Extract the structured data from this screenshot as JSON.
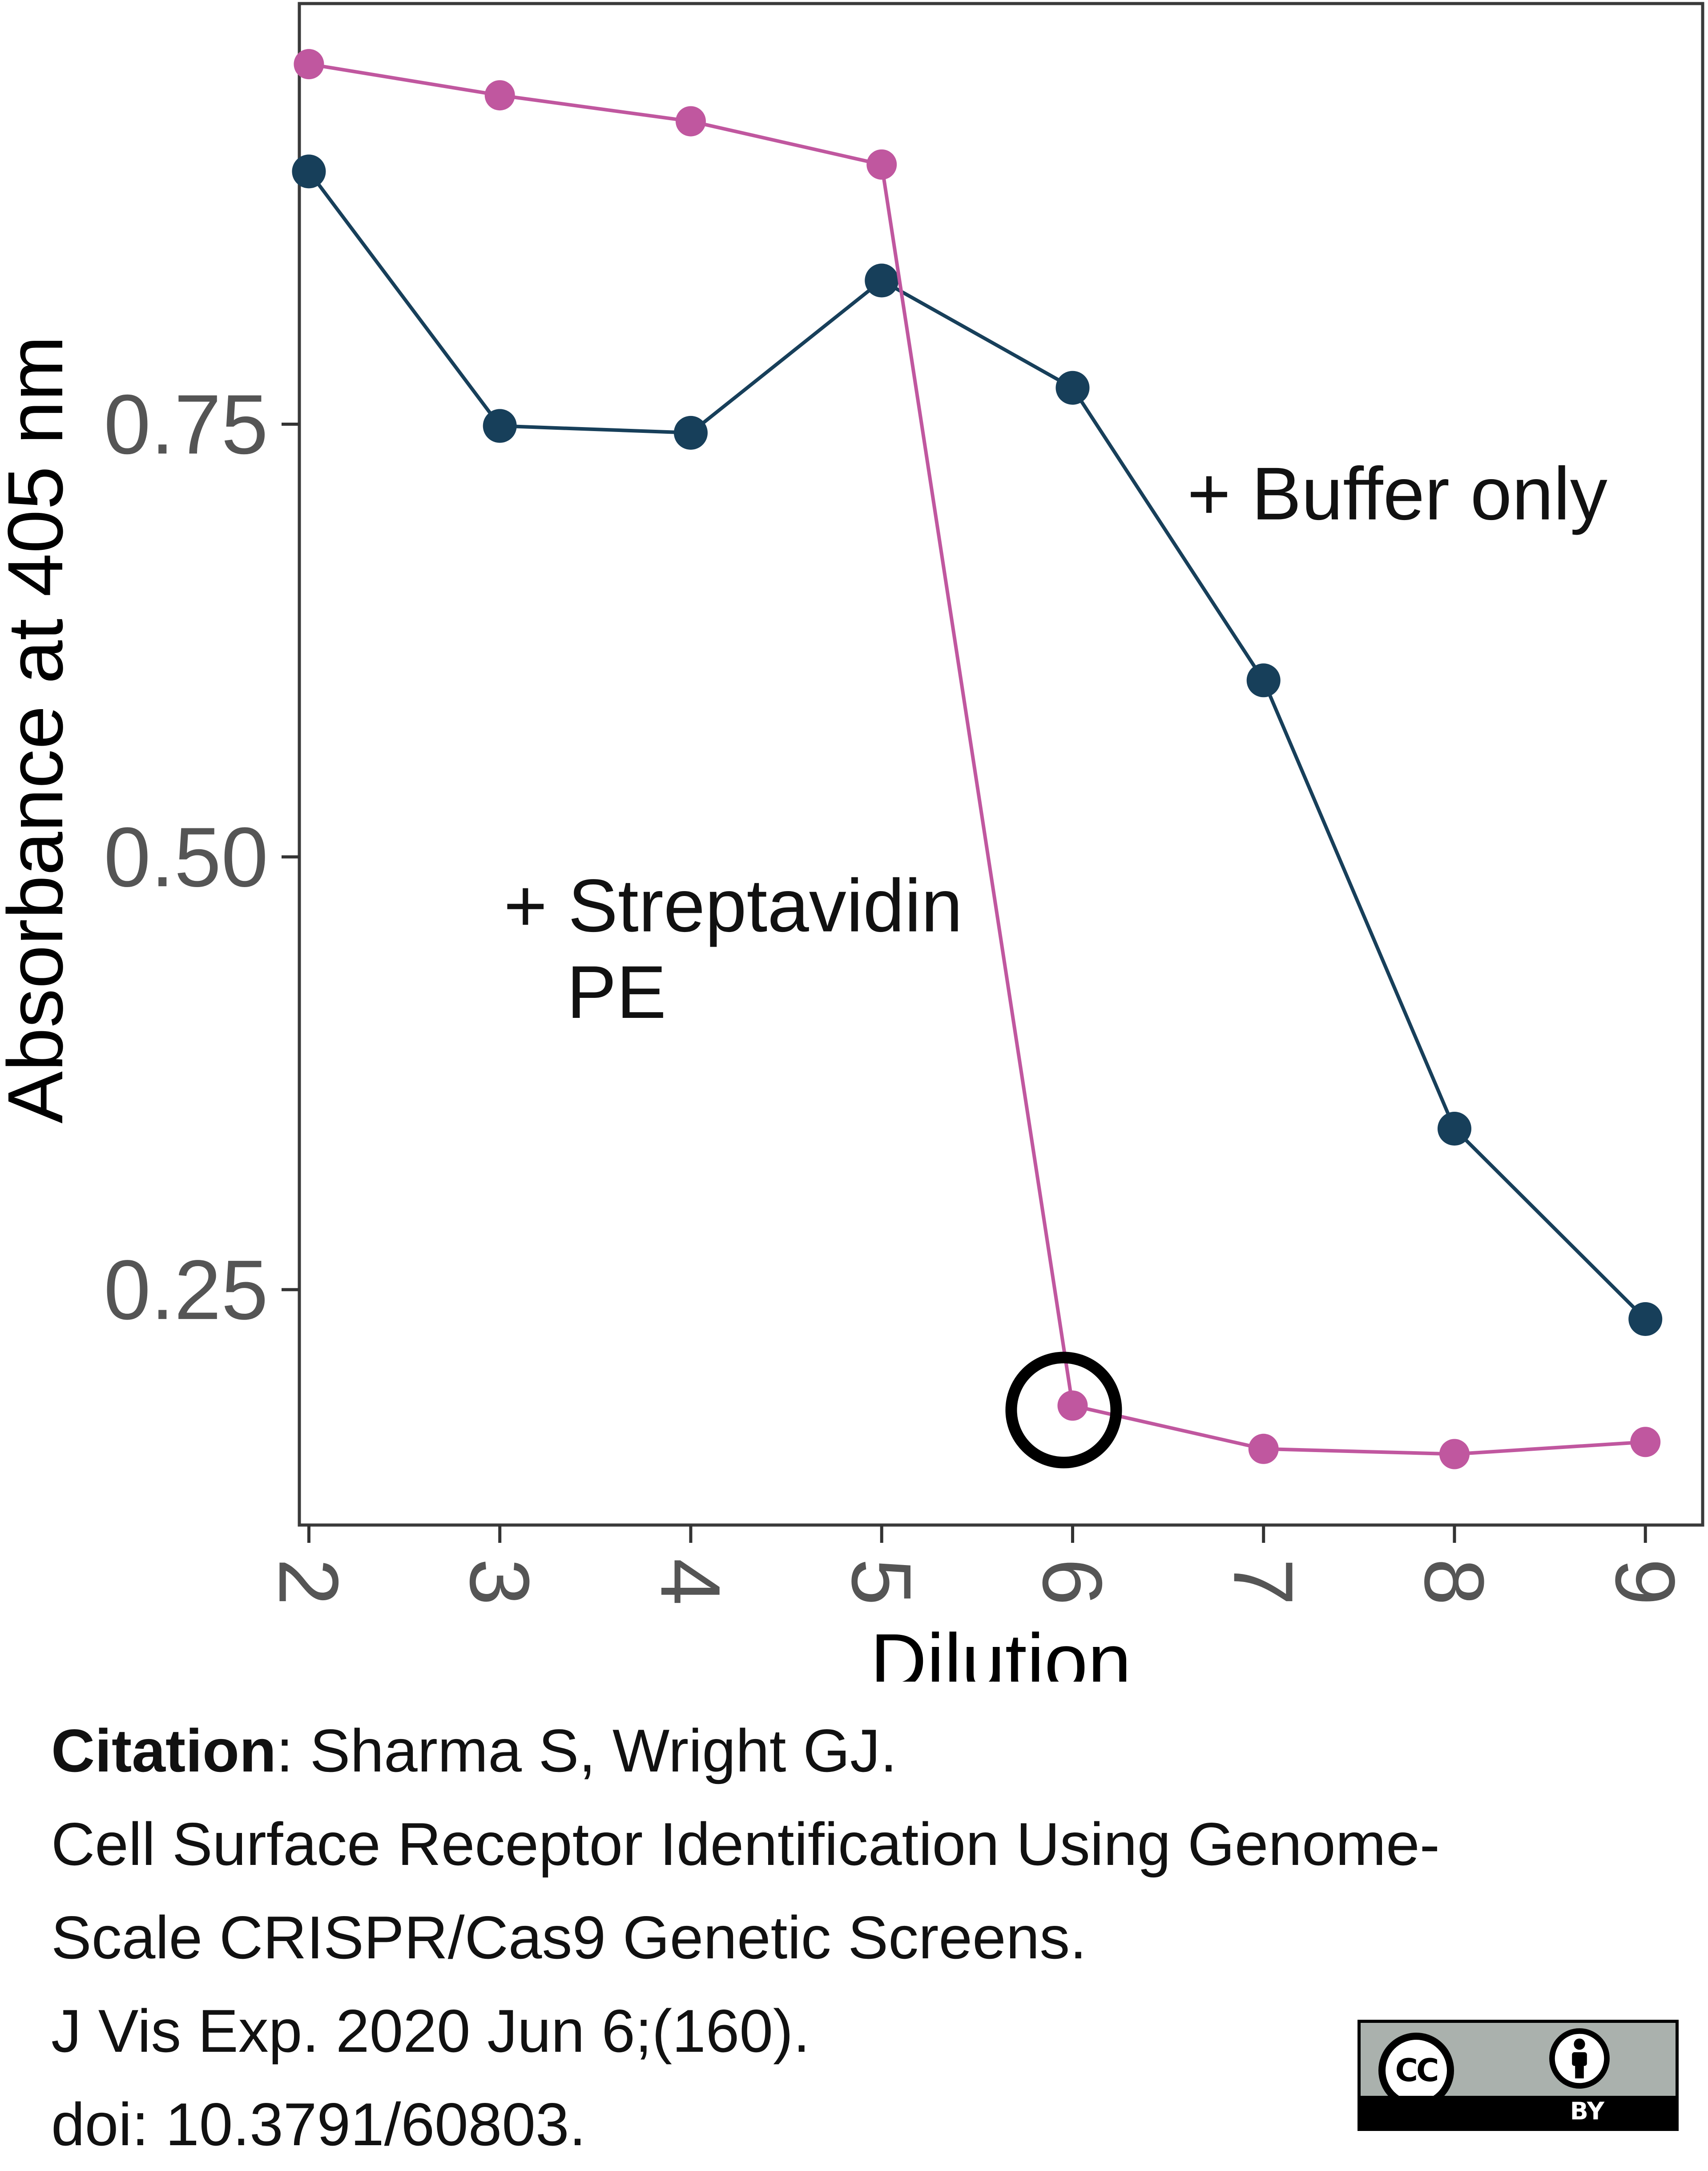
{
  "chart_data": {
    "type": "line",
    "title": "",
    "xlabel": "Dilution",
    "ylabel": "Absorbance at 405 nm",
    "x": [
      2,
      3,
      4,
      5,
      6,
      7,
      8,
      9
    ],
    "xlim": [
      1.95,
      9.3
    ],
    "ylim": [
      0.114,
      0.993
    ],
    "xticks": [
      "2",
      "3",
      "4",
      "5",
      "6",
      "7",
      "8",
      "9"
    ],
    "yticks": [
      0.25,
      0.5,
      0.75
    ],
    "ytick_labels": [
      "0.25",
      "0.50",
      "0.75"
    ],
    "grid": false,
    "series": [
      {
        "name": "+ Buffer only",
        "color": "#173f5a",
        "values": [
          0.896,
          0.749,
          0.745,
          0.833,
          0.771,
          0.602,
          0.343,
          0.233
        ]
      },
      {
        "name": "+ Streptavidin PE",
        "color": "#c0579f",
        "values": [
          0.958,
          0.94,
          0.925,
          0.9,
          0.183,
          0.158,
          0.155,
          0.162
        ]
      }
    ],
    "annotations": [
      {
        "text": "+ Buffer only",
        "series": 0
      },
      {
        "text_lines": [
          "+ Streptavidin",
          "PE"
        ],
        "series": 1
      },
      {
        "type": "circle-marker",
        "x": 6,
        "series": 1
      }
    ]
  },
  "citation": {
    "label": "Citation",
    "authors": ": Sharma S, Wright GJ.",
    "title_line1": "Cell Surface Receptor Identification Using Genome-",
    "title_line2": "Scale CRISPR/Cas9 Genetic Screens.",
    "journal": "J Vis Exp. 2020 Jun 6;(160).",
    "doi": "doi: 10.3791/60803."
  },
  "license": {
    "cc_text": "CC",
    "by_text": "BY",
    "icon": "cc-by-license-icon"
  }
}
